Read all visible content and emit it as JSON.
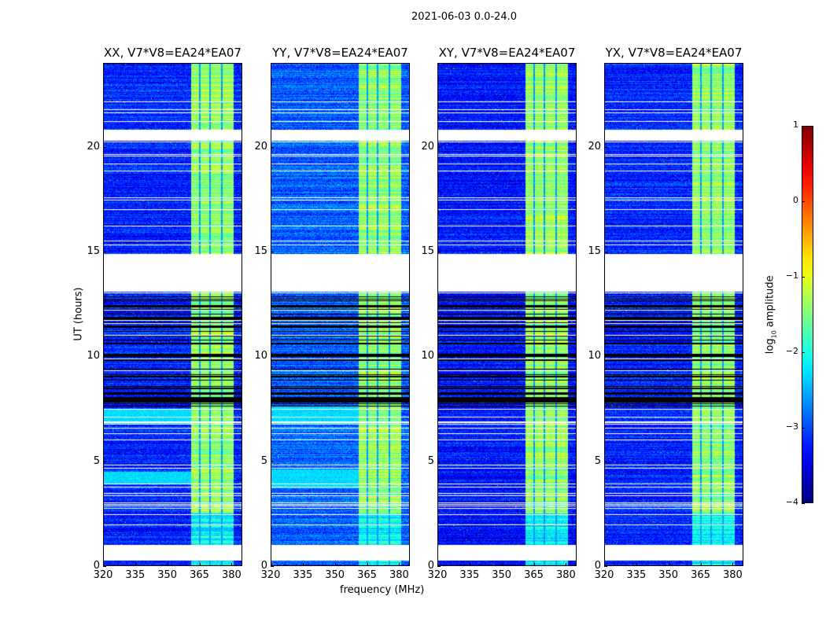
{
  "chart_data": {
    "type": "heatmap",
    "title": "2021-06-03 0.0-24.0",
    "xlabel": "frequency (MHz)",
    "ylabel": "UT (hours)",
    "xlim": [
      320,
      385
    ],
    "ylim": [
      0,
      24
    ],
    "xticks": [
      "320",
      "335",
      "350",
      "365",
      "380"
    ],
    "xtick_values": [
      320,
      335,
      350,
      365,
      380
    ],
    "yticks": [
      "0",
      "5",
      "10",
      "15",
      "20"
    ],
    "ytick_values": [
      0,
      5,
      10,
      15,
      20
    ],
    "panels": [
      {
        "title": "XX, V7*V8=EA24*EA07",
        "cyan_bands": [
          [
            3.9,
            4.5
          ],
          [
            6.8,
            7.5
          ]
        ],
        "level": -3.2
      },
      {
        "title": "YY, V7*V8=EA24*EA07",
        "cyan_bands": [
          [
            3.7,
            4.6
          ],
          [
            6.8,
            7.6
          ]
        ],
        "level": -2.9
      },
      {
        "title": "XY, V7*V8=EA24*EA07",
        "cyan_bands": [],
        "level": -3.3
      },
      {
        "title": "YX, V7*V8=EA24*EA07",
        "cyan_bands": [],
        "level": -3.2
      }
    ],
    "flagged_hours": [
      [
        0.26,
        1.0
      ],
      [
        13.1,
        14.9
      ],
      [
        20.3,
        20.8
      ]
    ],
    "dense_flag_region_hours": [
      7.6,
      13.1
    ],
    "rfi_columns_mhz": [
      [
        361,
        364.5
      ],
      [
        365.3,
        369.5
      ],
      [
        370.3,
        375
      ],
      [
        375.8,
        380.7
      ]
    ],
    "colorbar": {
      "label_prefix": "log",
      "label_sub": "10",
      "label_suffix": " amplitude",
      "range": [
        -4,
        1
      ],
      "ticks": [
        "1",
        "0",
        "−1",
        "−2",
        "−3",
        "−4"
      ],
      "tick_values": [
        1,
        0,
        -1,
        -2,
        -3,
        -4
      ],
      "colormap": "jet"
    }
  }
}
